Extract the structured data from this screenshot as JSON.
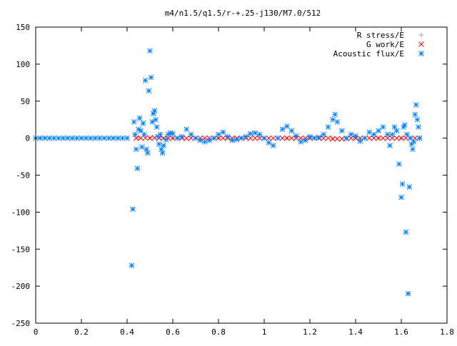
{
  "chart_data": {
    "type": "scatter",
    "title": "m4/n1.5/q1.5/r-+.25-j130/M7.0/512",
    "xlabel": "",
    "ylabel": "",
    "xlim": [
      0,
      1.8
    ],
    "ylim": [
      -250,
      150
    ],
    "xticks": [
      "0",
      "0.2",
      "0.4",
      "0.6",
      "0.8",
      "1",
      "1.2",
      "1.4",
      "1.6",
      "1.8"
    ],
    "yticks": [
      "150",
      "100",
      "50",
      "0",
      "-50",
      "-100",
      "-150",
      "-200",
      "-250"
    ],
    "grid": false,
    "legend_position": "top-right",
    "series": [
      {
        "name": "R stress/E",
        "marker": "plus",
        "color": "#a0a0a0",
        "points": [
          [
            0.45,
            0.5
          ],
          [
            0.5,
            1
          ],
          [
            0.55,
            0.5
          ],
          [
            0.6,
            0
          ],
          [
            0.7,
            0
          ],
          [
            0.8,
            0
          ],
          [
            0.9,
            0
          ],
          [
            1.0,
            0
          ],
          [
            1.1,
            0
          ],
          [
            1.2,
            0
          ],
          [
            1.3,
            0
          ],
          [
            1.4,
            0
          ],
          [
            1.5,
            0
          ],
          [
            1.6,
            0
          ],
          [
            1.68,
            0
          ]
        ]
      },
      {
        "name": "G work/E",
        "marker": "cross",
        "color": "#ff0000",
        "points": [
          [
            0.44,
            0
          ],
          [
            0.46,
            0
          ],
          [
            0.48,
            0.5
          ],
          [
            0.5,
            0
          ],
          [
            0.52,
            0.5
          ],
          [
            0.54,
            0
          ],
          [
            0.56,
            0
          ],
          [
            0.58,
            0
          ],
          [
            0.6,
            0
          ],
          [
            0.62,
            0
          ],
          [
            0.64,
            0
          ],
          [
            0.66,
            0
          ],
          [
            0.68,
            0
          ],
          [
            0.7,
            0
          ],
          [
            0.72,
            0
          ],
          [
            0.74,
            0
          ],
          [
            0.76,
            0
          ],
          [
            0.78,
            0
          ],
          [
            0.8,
            0
          ],
          [
            0.82,
            0
          ],
          [
            0.84,
            0
          ],
          [
            0.86,
            0
          ],
          [
            0.88,
            0
          ],
          [
            0.9,
            0
          ],
          [
            0.92,
            0
          ],
          [
            0.94,
            0
          ],
          [
            0.96,
            0
          ],
          [
            0.98,
            0
          ],
          [
            1.0,
            0
          ],
          [
            1.02,
            0
          ],
          [
            1.04,
            0
          ],
          [
            1.06,
            0
          ],
          [
            1.08,
            0
          ],
          [
            1.1,
            0
          ],
          [
            1.12,
            0
          ],
          [
            1.14,
            0
          ],
          [
            1.16,
            0
          ],
          [
            1.18,
            0
          ],
          [
            1.2,
            0
          ],
          [
            1.22,
            0
          ],
          [
            1.24,
            0
          ],
          [
            1.26,
            0
          ],
          [
            1.28,
            0
          ],
          [
            1.3,
            -1
          ],
          [
            1.32,
            -1
          ],
          [
            1.34,
            -1
          ],
          [
            1.36,
            -0.5
          ],
          [
            1.38,
            0
          ],
          [
            1.4,
            0
          ],
          [
            1.42,
            0
          ],
          [
            1.44,
            0
          ],
          [
            1.46,
            0
          ],
          [
            1.48,
            0
          ],
          [
            1.5,
            0
          ],
          [
            1.52,
            0
          ],
          [
            1.54,
            0
          ],
          [
            1.56,
            0
          ],
          [
            1.58,
            0
          ],
          [
            1.6,
            0
          ],
          [
            1.62,
            0
          ],
          [
            1.64,
            0
          ],
          [
            1.66,
            0
          ],
          [
            1.68,
            0
          ]
        ]
      },
      {
        "name": "Acoustic flux/E",
        "marker": "star",
        "color": "#0080ff",
        "points": [
          [
            0.0,
            0
          ],
          [
            0.02,
            0
          ],
          [
            0.04,
            0
          ],
          [
            0.06,
            0
          ],
          [
            0.08,
            0
          ],
          [
            0.1,
            0
          ],
          [
            0.12,
            0
          ],
          [
            0.14,
            0
          ],
          [
            0.16,
            0
          ],
          [
            0.18,
            0
          ],
          [
            0.2,
            0
          ],
          [
            0.22,
            0
          ],
          [
            0.24,
            0
          ],
          [
            0.26,
            0
          ],
          [
            0.28,
            0
          ],
          [
            0.3,
            0
          ],
          [
            0.32,
            0
          ],
          [
            0.34,
            0
          ],
          [
            0.36,
            0
          ],
          [
            0.38,
            0
          ],
          [
            0.4,
            0
          ],
          [
            0.42,
            -172
          ],
          [
            0.425,
            -96
          ],
          [
            0.43,
            22
          ],
          [
            0.435,
            5
          ],
          [
            0.44,
            -15
          ],
          [
            0.445,
            -41
          ],
          [
            0.45,
            12
          ],
          [
            0.455,
            27
          ],
          [
            0.46,
            10
          ],
          [
            0.465,
            -12
          ],
          [
            0.47,
            20
          ],
          [
            0.475,
            5
          ],
          [
            0.48,
            78
          ],
          [
            0.485,
            -15
          ],
          [
            0.49,
            -20
          ],
          [
            0.495,
            64
          ],
          [
            0.5,
            118
          ],
          [
            0.505,
            82
          ],
          [
            0.51,
            22
          ],
          [
            0.515,
            33
          ],
          [
            0.52,
            37
          ],
          [
            0.525,
            25
          ],
          [
            0.53,
            15
          ],
          [
            0.535,
            2
          ],
          [
            0.54,
            -8
          ],
          [
            0.545,
            5
          ],
          [
            0.55,
            -15
          ],
          [
            0.555,
            -20
          ],
          [
            0.56,
            -10
          ],
          [
            0.57,
            -2
          ],
          [
            0.58,
            5
          ],
          [
            0.59,
            7
          ],
          [
            0.6,
            6
          ],
          [
            0.62,
            0
          ],
          [
            0.64,
            2
          ],
          [
            0.66,
            12
          ],
          [
            0.68,
            5
          ],
          [
            0.7,
            0
          ],
          [
            0.72,
            -3
          ],
          [
            0.74,
            -5
          ],
          [
            0.76,
            -3
          ],
          [
            0.78,
            0
          ],
          [
            0.8,
            5
          ],
          [
            0.82,
            8
          ],
          [
            0.84,
            2
          ],
          [
            0.86,
            -3
          ],
          [
            0.88,
            -2
          ],
          [
            0.9,
            0
          ],
          [
            0.92,
            2
          ],
          [
            0.94,
            6
          ],
          [
            0.96,
            7
          ],
          [
            0.98,
            5
          ],
          [
            1.0,
            0
          ],
          [
            1.02,
            -6
          ],
          [
            1.04,
            -10
          ],
          [
            1.06,
            0
          ],
          [
            1.08,
            12
          ],
          [
            1.1,
            16
          ],
          [
            1.12,
            10
          ],
          [
            1.14,
            3
          ],
          [
            1.16,
            -5
          ],
          [
            1.18,
            -3
          ],
          [
            1.2,
            2
          ],
          [
            1.22,
            0
          ],
          [
            1.24,
            1
          ],
          [
            1.26,
            5
          ],
          [
            1.28,
            15
          ],
          [
            1.3,
            25
          ],
          [
            1.31,
            32
          ],
          [
            1.32,
            22
          ],
          [
            1.34,
            10
          ],
          [
            1.36,
            0
          ],
          [
            1.38,
            5
          ],
          [
            1.4,
            3
          ],
          [
            1.42,
            -4
          ],
          [
            1.44,
            0
          ],
          [
            1.46,
            8
          ],
          [
            1.48,
            5
          ],
          [
            1.5,
            10
          ],
          [
            1.52,
            15
          ],
          [
            1.54,
            5
          ],
          [
            1.55,
            -10
          ],
          [
            1.56,
            5
          ],
          [
            1.57,
            15
          ],
          [
            1.58,
            10
          ],
          [
            1.59,
            -35
          ],
          [
            1.6,
            -80
          ],
          [
            1.605,
            -62
          ],
          [
            1.61,
            15
          ],
          [
            1.615,
            18
          ],
          [
            1.62,
            -127
          ],
          [
            1.625,
            5
          ],
          [
            1.63,
            -210
          ],
          [
            1.635,
            -66
          ],
          [
            1.64,
            0
          ],
          [
            1.645,
            -8
          ],
          [
            1.65,
            -15
          ],
          [
            1.655,
            -5
          ],
          [
            1.66,
            32
          ],
          [
            1.665,
            45
          ],
          [
            1.67,
            25
          ],
          [
            1.675,
            15
          ],
          [
            1.68,
            0
          ]
        ]
      }
    ]
  }
}
